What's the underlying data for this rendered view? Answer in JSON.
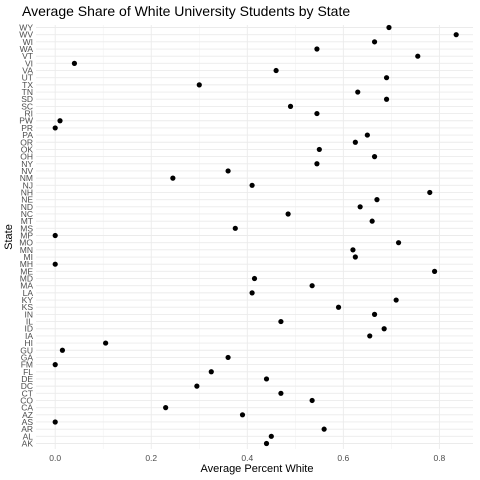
{
  "chart_data": {
    "type": "scatter",
    "title": "Average Share of White University Students by State",
    "xlabel": "Average Percent White",
    "ylabel": "State",
    "xlim": [
      -0.04,
      0.87
    ],
    "x_ticks": [
      0.0,
      0.2,
      0.4,
      0.6,
      0.8
    ],
    "x_tick_labels": [
      "0.0",
      "0.2",
      "0.4",
      "0.6",
      "0.8"
    ],
    "grid": true,
    "legend": "none",
    "point_color": "#000000",
    "categories": [
      "AK",
      "AL",
      "AR",
      "AS",
      "AZ",
      "CA",
      "CO",
      "CT",
      "DC",
      "DE",
      "FL",
      "FM",
      "GA",
      "GU",
      "HI",
      "IA",
      "ID",
      "IL",
      "IN",
      "KS",
      "KY",
      "LA",
      "MA",
      "MD",
      "ME",
      "MH",
      "MI",
      "MN",
      "MO",
      "MP",
      "MS",
      "MT",
      "NC",
      "ND",
      "NE",
      "NH",
      "NJ",
      "NM",
      "NV",
      "NY",
      "OH",
      "OK",
      "OR",
      "PA",
      "PR",
      "PW",
      "RI",
      "SC",
      "SD",
      "TN",
      "TX",
      "UT",
      "VA",
      "VI",
      "VT",
      "WA",
      "WI",
      "WV",
      "WY"
    ],
    "values": [
      0.44,
      0.45,
      0.56,
      0.0,
      0.39,
      0.23,
      0.535,
      0.47,
      0.295,
      0.44,
      0.325,
      0.0,
      0.36,
      0.015,
      0.105,
      0.655,
      0.685,
      0.47,
      0.665,
      0.59,
      0.71,
      0.41,
      0.535,
      0.415,
      0.79,
      0.0,
      0.625,
      0.62,
      0.715,
      0.0,
      0.375,
      0.66,
      0.485,
      0.635,
      0.67,
      0.78,
      0.41,
      0.245,
      0.36,
      0.545,
      0.665,
      0.55,
      0.625,
      0.65,
      0.0,
      0.01,
      0.545,
      0.49,
      0.69,
      0.63,
      0.3,
      0.69,
      0.46,
      0.04,
      0.755,
      0.545,
      0.665,
      0.835,
      0.695
    ]
  }
}
